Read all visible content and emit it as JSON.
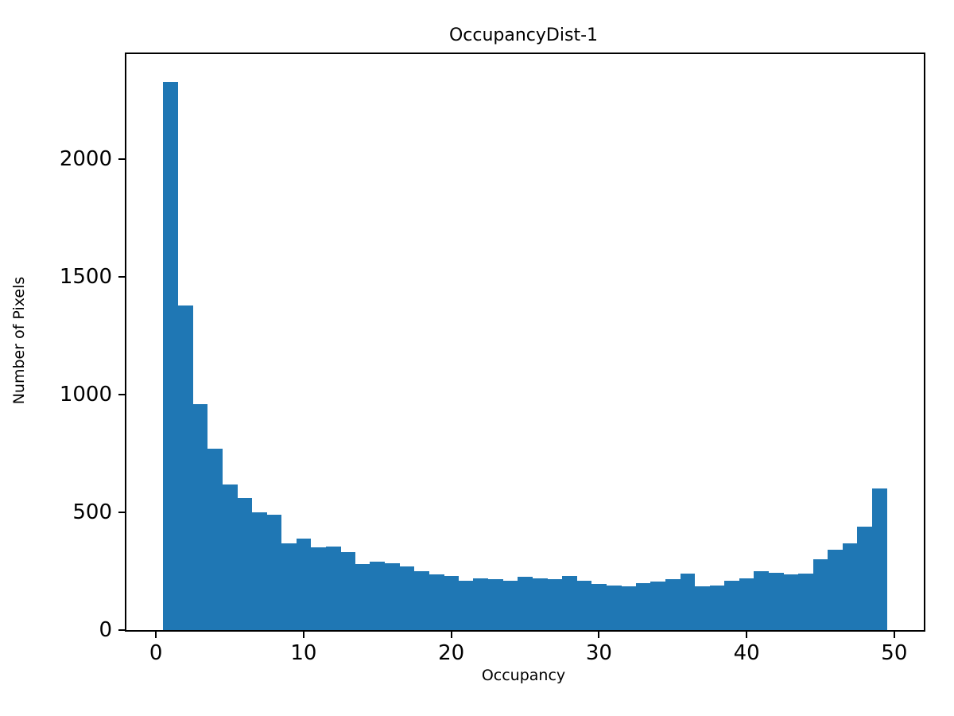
{
  "colors": {
    "bar": "#1f77b4",
    "spine": "#000000",
    "background": "#ffffff",
    "text": "#000000"
  },
  "chart_data": {
    "type": "bar",
    "subtype": "histogram",
    "title": "OccupancyDist-1",
    "xlabel": "Occupancy",
    "ylabel": "Number of Pixels",
    "bin_start": 0.5,
    "bin_width": 1,
    "values": [
      2330,
      1380,
      960,
      770,
      620,
      560,
      500,
      490,
      370,
      390,
      350,
      355,
      330,
      280,
      290,
      285,
      270,
      250,
      235,
      230,
      210,
      220,
      215,
      210,
      225,
      220,
      215,
      230,
      210,
      195,
      190,
      185,
      200,
      205,
      215,
      240,
      185,
      190,
      210,
      220,
      250,
      245,
      235,
      240,
      300,
      340,
      370,
      440,
      600
    ],
    "xlim": [
      -2,
      52
    ],
    "ylim": [
      0,
      2447
    ],
    "xticks": [
      0,
      10,
      20,
      30,
      40,
      50
    ],
    "yticks": [
      0,
      500,
      1000,
      1500,
      2000
    ],
    "grid": false,
    "legend_position": "none"
  }
}
